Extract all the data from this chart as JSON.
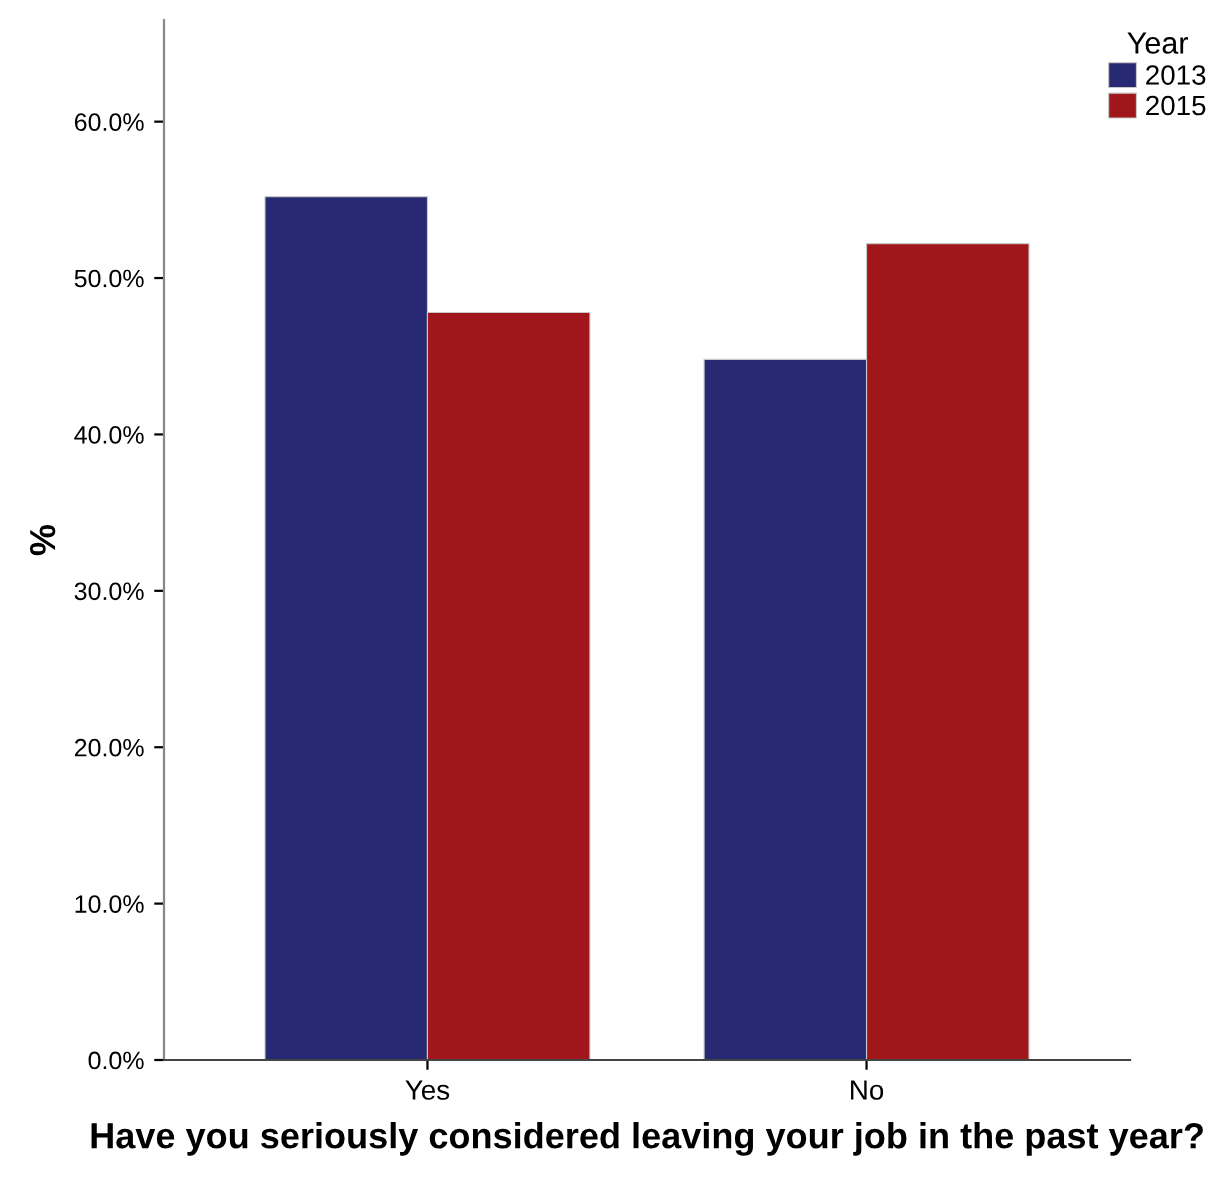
{
  "chart_data": {
    "type": "bar",
    "xlabel": "Have you seriously considered leaving your job in the past year?",
    "ylabel": "%",
    "legend_title": "Year",
    "categories": [
      "Yes",
      "No"
    ],
    "series": [
      {
        "name": "2013",
        "color": "#272a72",
        "values": [
          55.2,
          44.8
        ]
      },
      {
        "name": "2015",
        "color": "#a1161a",
        "values": [
          47.8,
          52.2
        ]
      }
    ],
    "ylim": [
      0,
      66.5
    ],
    "yticks": [
      {
        "value": 0,
        "label": "0.0%"
      },
      {
        "value": 10,
        "label": "10.0%"
      },
      {
        "value": 20,
        "label": "20.0%"
      },
      {
        "value": 30,
        "label": "30.0%"
      },
      {
        "value": 40,
        "label": "40.0%"
      },
      {
        "value": 50,
        "label": "50.0%"
      },
      {
        "value": 60,
        "label": "60.0%"
      }
    ],
    "legend": "top right",
    "grid": false
  }
}
